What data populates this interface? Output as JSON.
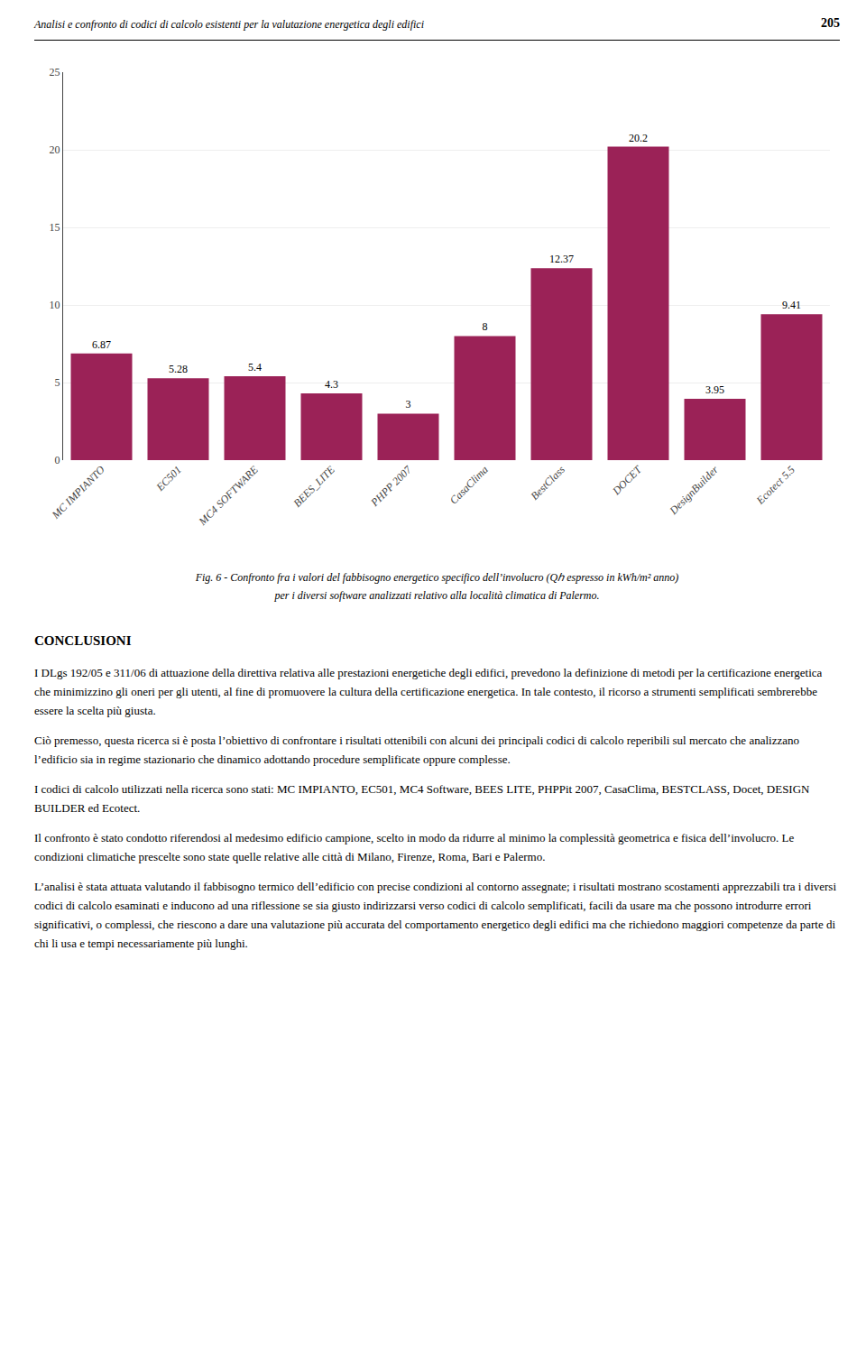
{
  "chart_data": {
    "type": "bar",
    "categories": [
      "MC IMPIANTO",
      "EC501",
      "MC4 SOFTWARE",
      "BEES_LITE",
      "PHPP 2007",
      "CasaClima",
      "BestClass",
      "DOCET",
      "DesignBuilder",
      "Ecotect 5.5"
    ],
    "values": [
      6.87,
      5.28,
      5.4,
      4.3,
      3,
      8,
      12.37,
      20.2,
      3.95,
      9.41
    ],
    "color": "#9B2257",
    "ylim": [
      0,
      25
    ],
    "yticks": [
      0,
      5,
      10,
      15,
      20,
      25
    ],
    "grid": true,
    "data_labels": true,
    "annotations": [
      "Analisi e confronto di codici di calcolo esistenti per la valutazione energetica degli edifici",
      "205",
      "Fig. 6 - Confronto fra i valori del fabbisogno energetico specifico dell’involucro (Qℎ espresso in kWh/m² anno)",
      "per i diversi software analizzati relativo alla località climatica di Palermo.",
      "CONCLUSIONI",
      "I DLgs 192/05 e 311/06 di attuazione della direttiva relativa alle prestazioni energetiche degli edifici, prevedono la definizione di metodi per la certificazione energetica che minimizzino gli oneri per gli utenti, al fine di promuovere la cultura della certificazione energetica. In tale contesto, il ricorso a strumenti semplificati sembrerebbe essere la scelta più giusta.",
      "Ciò premesso, questa ricerca si è posta l’obiettivo di confrontare i risultati ottenibili con alcuni dei principali codici di calcolo reperibili sul mercato che analizzano l’edificio sia in regime stazionario che dinamico adottando procedure semplificate oppure complesse.",
      "I codici di calcolo utilizzati nella ricerca sono stati: MC IMPIANTO, EC501, MC4 Software, BEES LITE, PHPPit 2007, CasaClima, BESTCLASS, Docet, DESIGN BUILDER ed Ecotect.",
      "Il confronto è stato condotto riferendosi al medesimo edificio campione, scelto in modo da ridurre al minimo la complessità geometrica e fisica dell’involucro. Le condizioni climatiche prescelte sono state quelle relative alle città di Milano, Firenze, Roma, Bari e Palermo.",
      "L’analisi è stata attuata valutando il fabbisogno termico dell’edificio con precise condizioni al contorno assegnate; i risultati mostrano scostamenti apprezzabili tra i diversi codici di calcolo esaminati e inducono ad una riflessione se sia giusto indirizzarsi verso codici di calcolo semplificati, facili da usare ma che possono introdurre errori significativi, o complessi, che riescono a dare una valutazione più accurata del comportamento energetico degli edifici ma che richiedono maggiori competenze da parte di chi li usa e tempi necessariamente più lunghi."
    ]
  }
}
